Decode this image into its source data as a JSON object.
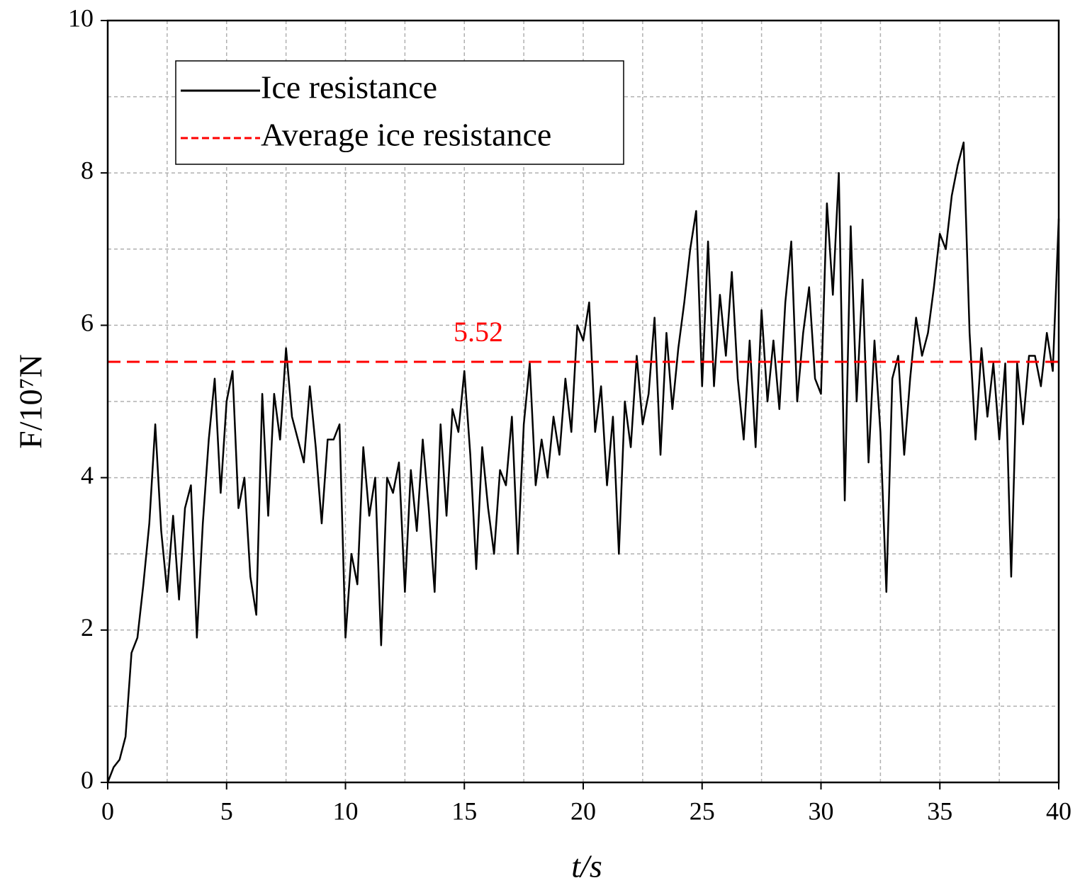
{
  "chart_data": {
    "type": "line",
    "xlabel": "t/s",
    "ylabel": "F/10⁷N",
    "x": [
      0,
      0.25,
      0.5,
      0.75,
      1,
      1.25,
      1.5,
      1.75,
      2,
      2.25,
      2.5,
      2.75,
      3,
      3.25,
      3.5,
      3.75,
      4,
      4.25,
      4.5,
      4.75,
      5,
      5.25,
      5.5,
      5.75,
      6,
      6.25,
      6.5,
      6.75,
      7,
      7.25,
      7.5,
      7.75,
      8,
      8.25,
      8.5,
      8.75,
      9,
      9.25,
      9.5,
      9.75,
      10,
      10.25,
      10.5,
      10.75,
      11,
      11.25,
      11.5,
      11.75,
      12,
      12.25,
      12.5,
      12.75,
      13,
      13.25,
      13.5,
      13.75,
      14,
      14.25,
      14.5,
      14.75,
      15,
      15.25,
      15.5,
      15.75,
      16,
      16.25,
      16.5,
      16.75,
      17,
      17.25,
      17.5,
      17.75,
      18,
      18.25,
      18.5,
      18.75,
      19,
      19.25,
      19.5,
      19.75,
      20,
      20.25,
      20.5,
      20.75,
      21,
      21.25,
      21.5,
      21.75,
      22,
      22.25,
      22.5,
      22.75,
      23,
      23.25,
      23.5,
      23.75,
      24,
      24.25,
      24.5,
      24.75,
      25,
      25.25,
      25.5,
      25.75,
      26,
      26.25,
      26.5,
      26.75,
      27,
      27.25,
      27.5,
      27.75,
      28,
      28.25,
      28.5,
      28.75,
      29,
      29.25,
      29.5,
      29.75,
      30,
      30.25,
      30.5,
      30.75,
      31,
      31.25,
      31.5,
      31.75,
      32,
      32.25,
      32.5,
      32.75,
      33,
      33.25,
      33.5,
      33.75,
      34,
      34.25,
      34.5,
      34.75,
      35,
      35.25,
      35.5,
      35.75,
      36,
      36.25,
      36.5,
      36.75,
      37,
      37.25,
      37.5,
      37.75,
      38,
      38.25,
      38.5,
      38.75,
      39,
      39.25,
      39.5,
      39.75,
      40
    ],
    "series": [
      {
        "name": "Ice resistance",
        "color": "#000000",
        "values": [
          0,
          0.2,
          0.3,
          0.6,
          1.7,
          1.9,
          2.6,
          3.4,
          4.7,
          3.3,
          2.5,
          3.5,
          2.4,
          3.6,
          3.9,
          1.9,
          3.4,
          4.5,
          5.3,
          3.8,
          5.0,
          5.4,
          3.6,
          4.0,
          2.7,
          2.2,
          5.1,
          3.5,
          5.1,
          4.5,
          5.7,
          4.8,
          4.5,
          4.2,
          5.2,
          4.4,
          3.4,
          4.5,
          4.5,
          4.7,
          1.9,
          3.0,
          2.6,
          4.4,
          3.5,
          4.0,
          1.8,
          4.0,
          3.8,
          4.2,
          2.5,
          4.1,
          3.3,
          4.5,
          3.6,
          2.5,
          4.7,
          3.5,
          4.9,
          4.6,
          5.4,
          4.3,
          2.8,
          4.4,
          3.6,
          3.0,
          4.1,
          3.9,
          4.8,
          3.0,
          4.7,
          5.5,
          3.9,
          4.5,
          4.0,
          4.8,
          4.3,
          5.3,
          4.6,
          6.0,
          5.8,
          6.3,
          4.6,
          5.2,
          3.9,
          4.8,
          3.0,
          5.0,
          4.4,
          5.6,
          4.7,
          5.1,
          6.1,
          4.3,
          5.9,
          4.9,
          5.7,
          6.3,
          7.0,
          7.5,
          5.2,
          7.1,
          5.2,
          6.4,
          5.6,
          6.7,
          5.3,
          4.5,
          5.8,
          4.4,
          6.2,
          5.0,
          5.8,
          4.9,
          6.3,
          7.1,
          5.0,
          5.9,
          6.5,
          5.3,
          5.1,
          7.6,
          6.4,
          8.0,
          3.7,
          7.3,
          5.0,
          6.6,
          4.2,
          5.8,
          4.6,
          2.5,
          5.3,
          5.6,
          4.3,
          5.3,
          6.1,
          5.6,
          5.9,
          6.5,
          7.2,
          7.0,
          7.7,
          8.1,
          8.4,
          5.9,
          4.5,
          5.7,
          4.8,
          5.5,
          4.5,
          5.5,
          2.7,
          5.5,
          4.7,
          5.6,
          5.6,
          5.2,
          5.9,
          5.4,
          7.4
        ]
      }
    ],
    "average": {
      "name": "Average ice resistance",
      "color": "#ff0000",
      "value": 5.52
    },
    "xlim": [
      0,
      40
    ],
    "xticks": [
      0,
      5,
      10,
      15,
      20,
      25,
      30,
      35,
      40
    ],
    "ylim": [
      0,
      10
    ],
    "yticks": [
      0,
      2,
      4,
      6,
      8,
      10
    ],
    "grid": true,
    "minor_grid": true,
    "legend": "upper left"
  }
}
